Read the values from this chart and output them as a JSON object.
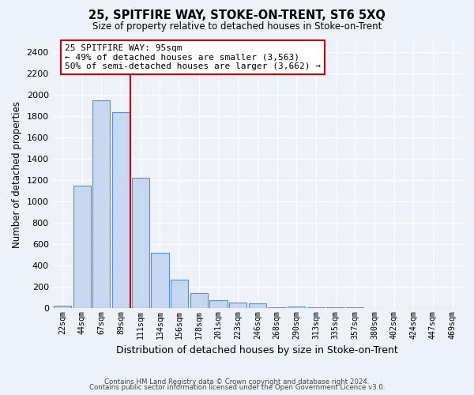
{
  "title": "25, SPITFIRE WAY, STOKE-ON-TRENT, ST6 5XQ",
  "subtitle": "Size of property relative to detached houses in Stoke-on-Trent",
  "xlabel": "Distribution of detached houses by size in Stoke-on-Trent",
  "ylabel": "Number of detached properties",
  "bar_labels": [
    "22sqm",
    "44sqm",
    "67sqm",
    "89sqm",
    "111sqm",
    "134sqm",
    "156sqm",
    "178sqm",
    "201sqm",
    "223sqm",
    "246sqm",
    "268sqm",
    "290sqm",
    "313sqm",
    "335sqm",
    "357sqm",
    "380sqm",
    "402sqm",
    "424sqm",
    "447sqm",
    "469sqm"
  ],
  "bar_values": [
    25,
    1150,
    1950,
    1840,
    1220,
    520,
    265,
    140,
    75,
    50,
    40,
    10,
    15,
    5,
    5,
    5,
    2,
    2,
    2,
    2,
    1
  ],
  "bar_color": "#c5d8f0",
  "bar_edge_color": "#5b8dd4",
  "ylim": [
    0,
    2500
  ],
  "yticks": [
    0,
    200,
    400,
    600,
    800,
    1000,
    1200,
    1400,
    1600,
    1800,
    2000,
    2200,
    2400
  ],
  "vline_x_idx": 3,
  "vline_color": "#cc0000",
  "annotation_title": "25 SPITFIRE WAY: 95sqm",
  "annotation_line1": "← 49% of detached houses are smaller (3,563)",
  "annotation_line2": "50% of semi-detached houses are larger (3,662) →",
  "annotation_box_color": "#ffffff",
  "annotation_box_edge": "#cc0000",
  "footer_line1": "Contains HM Land Registry data © Crown copyright and database right 2024.",
  "footer_line2": "Contains public sector information licensed under the Open Government Licence v3.0.",
  "background_color": "#edf1f8",
  "grid_color": "#ffffff"
}
